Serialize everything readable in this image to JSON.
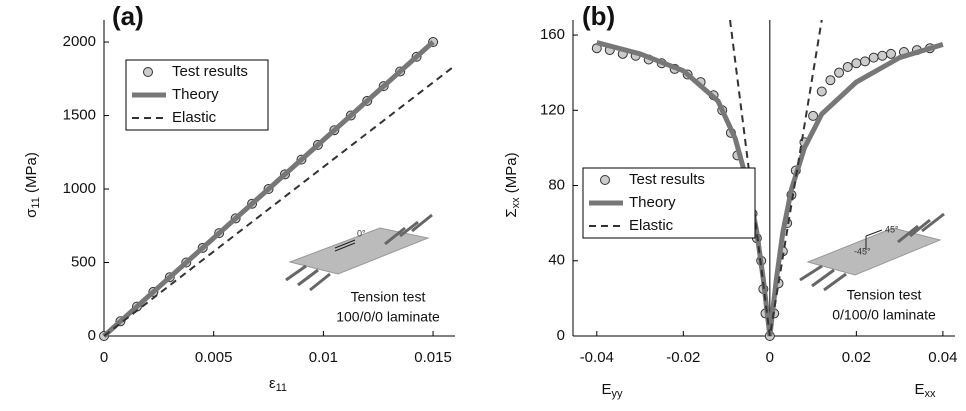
{
  "chart_data": [
    {
      "type": "line",
      "label": "(a)",
      "xlabel": [
        "ε",
        "11"
      ],
      "ylabel": [
        "σ",
        "11",
        " (MPa)"
      ],
      "xlim": [
        0,
        0.016
      ],
      "ylim": [
        0,
        2150
      ],
      "xticks": [
        0,
        0.005,
        0.01,
        0.015
      ],
      "yticks": [
        0,
        500,
        1000,
        1500,
        2000
      ],
      "legend": "upper left",
      "series": [
        {
          "name": "Test results",
          "type": "scatter",
          "color": "#cccccc",
          "x": [
            0,
            0.00075,
            0.0015,
            0.00225,
            0.003,
            0.00375,
            0.0045,
            0.00525,
            0.006,
            0.00675,
            0.0075,
            0.00825,
            0.009,
            0.00975,
            0.0105,
            0.01125,
            0.012,
            0.01275,
            0.0135,
            0.01425,
            0.015
          ],
          "values": [
            0,
            100,
            200,
            300,
            400,
            500,
            600,
            700,
            800,
            900,
            1000,
            1100,
            1200,
            1300,
            1400,
            1500,
            1600,
            1700,
            1800,
            1900,
            2000
          ]
        },
        {
          "name": "Theory",
          "type": "line",
          "color": "#777777",
          "x": [
            0,
            0.015
          ],
          "values": [
            0,
            2000
          ]
        },
        {
          "name": "Elastic",
          "type": "line",
          "dash": true,
          "color": "#333333",
          "x": [
            0,
            0.016
          ],
          "values": [
            0,
            1840
          ]
        }
      ],
      "annotations": [
        "Tension test",
        "100/0/0 laminate"
      ],
      "angle_labels": [
        "0°"
      ]
    },
    {
      "type": "line",
      "label": "(b)",
      "xlabel_left": [
        "E",
        "yy"
      ],
      "xlabel_right": [
        "E",
        "xx"
      ],
      "ylabel": [
        "Σ",
        "xx",
        " (MPa)"
      ],
      "xlim": [
        -0.0455,
        0.0428
      ],
      "ylim": [
        0,
        168
      ],
      "xticks": [
        -0.04,
        -0.02,
        0,
        0.02,
        0.04
      ],
      "yticks": [
        0,
        40,
        80,
        120,
        160
      ],
      "legend": "center left",
      "series": [
        {
          "name": "Test results",
          "type": "scatter",
          "color": "#cccccc",
          "x": [
            -0.04,
            -0.037,
            -0.034,
            -0.031,
            -0.028,
            -0.025,
            -0.022,
            -0.019,
            -0.016,
            -0.013,
            -0.011,
            -0.009,
            -0.0075,
            -0.006,
            -0.005,
            -0.004,
            -0.003,
            -0.002,
            -0.0015,
            -0.001,
            0,
            0.001,
            0.002,
            0.003,
            0.004,
            0.005,
            0.006,
            0.008,
            0.01,
            0.012,
            0.014,
            0.016,
            0.018,
            0.02,
            0.022,
            0.024,
            0.026,
            0.028,
            0.031,
            0.034,
            0.037
          ],
          "values": [
            153,
            152,
            150,
            149,
            147,
            145,
            142,
            139,
            135,
            128,
            120,
            108,
            96,
            84,
            75,
            65,
            52,
            40,
            25,
            12,
            0,
            12,
            28,
            45,
            60,
            75,
            88,
            103,
            117,
            130,
            136,
            140,
            143,
            145,
            146,
            148,
            149,
            150,
            151,
            152,
            153
          ]
        },
        {
          "name": "Theory",
          "type": "line",
          "color": "#777777",
          "x": [
            -0.04,
            -0.03,
            -0.02,
            -0.012,
            -0.008,
            -0.005,
            -0.003,
            -0.0015,
            0,
            0.0015,
            0.003,
            0.005,
            0.008,
            0.012,
            0.02,
            0.03,
            0.04
          ],
          "values": [
            156,
            150,
            141,
            125,
            105,
            80,
            55,
            30,
            0,
            30,
            55,
            78,
            100,
            118,
            135,
            148,
            155
          ]
        },
        {
          "name": "Elastic",
          "type": "line",
          "dash": true,
          "color": "#333333",
          "x": [
            -0.0092,
            0,
            0.012
          ],
          "values": [
            168,
            0,
            168
          ]
        }
      ],
      "annotations": [
        "Tension test",
        "0/100/0 laminate"
      ],
      "angle_labels": [
        "45°",
        "-45°"
      ]
    }
  ]
}
